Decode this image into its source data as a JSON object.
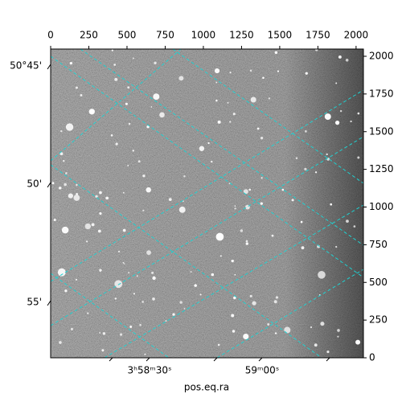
{
  "chart_data": {
    "type": "image",
    "xlabel": "pos.eq.ra",
    "xlim": [
      0,
      2048
    ],
    "ylim": [
      0,
      2048
    ],
    "xticks": [
      0,
      250,
      500,
      750,
      1000,
      1250,
      1500,
      1750,
      2000
    ],
    "yticks": [
      0,
      250,
      500,
      750,
      1000,
      1250,
      1500,
      1750,
      2000
    ],
    "dec_ticks": [
      "50°45'",
      "50'",
      "55'"
    ],
    "ra_ticks": [
      "3ʰ58ᵐ30ˢ",
      "59ᵐ00ˢ"
    ],
    "grid_color": "#20d0d0"
  }
}
